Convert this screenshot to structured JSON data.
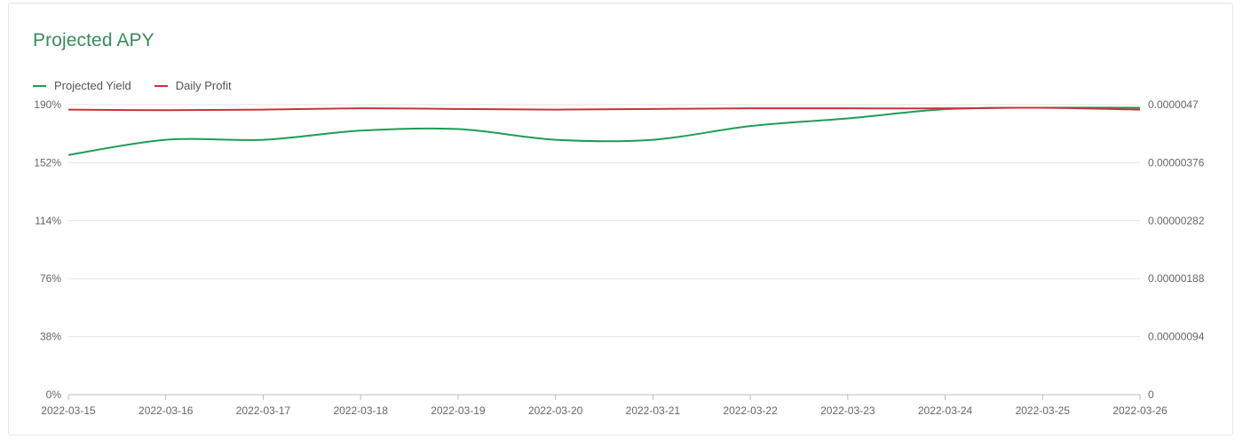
{
  "title": "Projected APY",
  "colors": {
    "title": "#3c8a5e",
    "grid": "#e3e3e3",
    "axis_text": "#666666"
  },
  "chart_data": {
    "type": "line",
    "title": "Projected APY",
    "x": [
      "2022-03-15",
      "2022-03-16",
      "2022-03-17",
      "2022-03-18",
      "2022-03-19",
      "2022-03-20",
      "2022-03-21",
      "2022-03-22",
      "2022-03-23",
      "2022-03-24",
      "2022-03-25",
      "2022-03-26"
    ],
    "y_left": {
      "ticks": [
        "0%",
        "38%",
        "76%",
        "114%",
        "152%",
        "190%"
      ],
      "ylim": [
        0,
        190
      ],
      "unit": "%"
    },
    "y_right": {
      "ticks": [
        "0",
        "0.00000094",
        "0.00000188",
        "0.00000282",
        "0.00000376",
        "0.0000047"
      ],
      "ylim": [
        0,
        4.7e-06
      ]
    },
    "grid": true,
    "legend": "top-left",
    "series": [
      {
        "name": "Projected Yield",
        "axis": "left",
        "color": "#1f9d55",
        "values": [
          157,
          167,
          167,
          173,
          174,
          167,
          167,
          176,
          181,
          187,
          188,
          188
        ]
      },
      {
        "name": "Daily Profit",
        "axis": "right",
        "color": "#c8323a",
        "values": [
          4.62e-06,
          4.61e-06,
          4.62e-06,
          4.64e-06,
          4.63e-06,
          4.62e-06,
          4.63e-06,
          4.64e-06,
          4.64e-06,
          4.64e-06,
          4.65e-06,
          4.62e-06
        ]
      }
    ]
  }
}
